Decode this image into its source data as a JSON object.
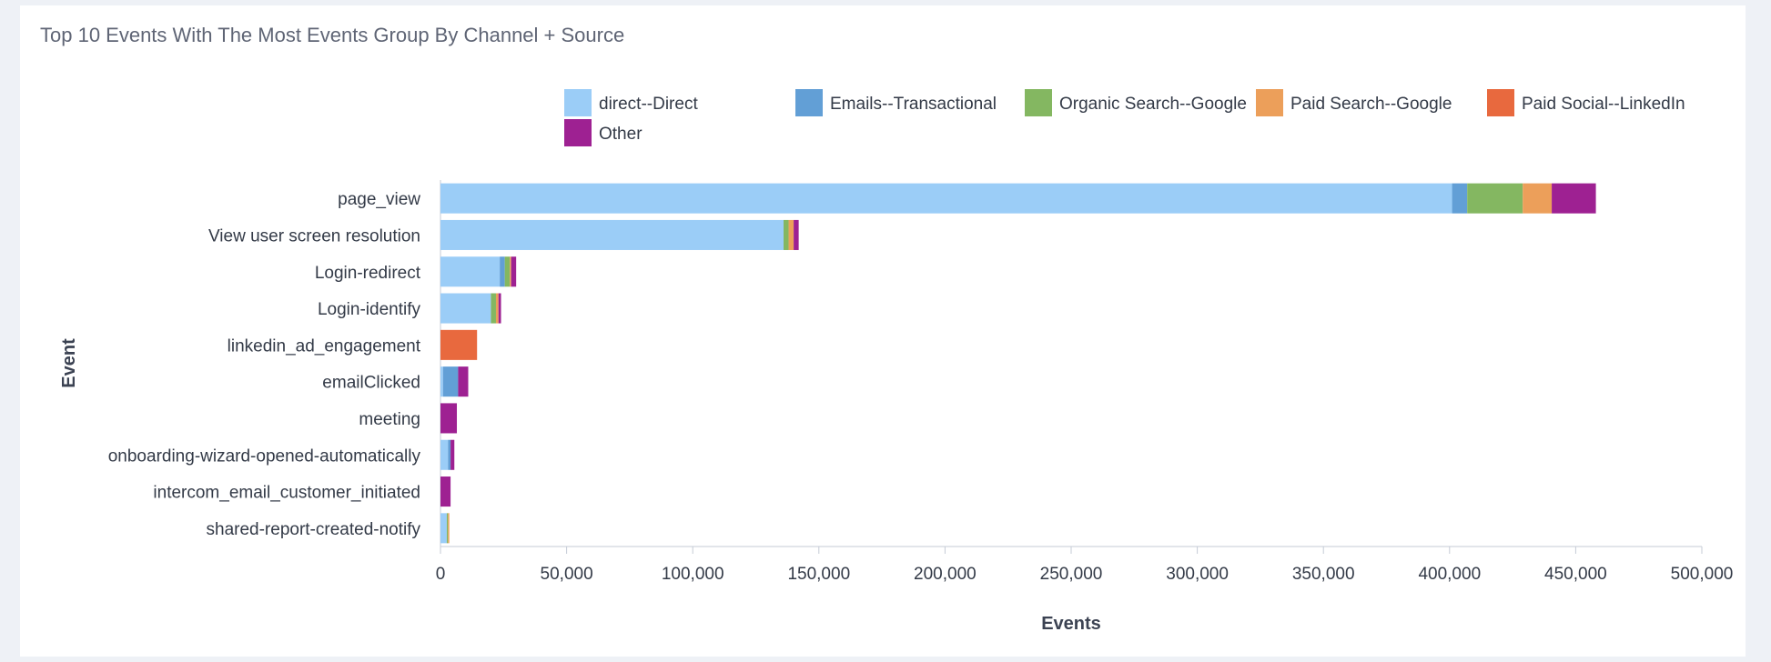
{
  "card": {
    "title": "Top 10 Events With The Most Events Group By Channel + Source"
  },
  "chart_data": {
    "type": "bar",
    "orientation": "horizontal",
    "stacked": true,
    "title": "Top 10 Events With The Most Events Group By Channel + Source",
    "xlabel": "Events",
    "ylabel": "Event",
    "xlim": [
      0,
      500000
    ],
    "xticks": [
      0,
      50000,
      100000,
      150000,
      200000,
      250000,
      300000,
      350000,
      400000,
      450000,
      500000
    ],
    "xtick_labels": [
      "0",
      "50,000",
      "100,000",
      "150,000",
      "200,000",
      "250,000",
      "300,000",
      "350,000",
      "400,000",
      "450,000",
      "500,000"
    ],
    "grid": false,
    "legend_position": "top",
    "categories": [
      "page_view",
      "View user screen resolution",
      "Login-redirect",
      "Login-identify",
      "linkedin_ad_engagement",
      "emailClicked",
      "meeting",
      "onboarding-wizard-opened-automatically",
      "intercom_email_customer_initiated",
      "shared-report-created-notify"
    ],
    "series": [
      {
        "name": "direct--Direct",
        "color": "#9bcdf7",
        "values": [
          401000,
          136000,
          23500,
          20000,
          0,
          1000,
          0,
          3000,
          0,
          2500
        ]
      },
      {
        "name": "Emails--Transactional",
        "color": "#629fd6",
        "values": [
          6000,
          0,
          2000,
          0,
          0,
          6000,
          0,
          1000,
          0,
          0
        ]
      },
      {
        "name": "Organic Search--Google",
        "color": "#84b761",
        "values": [
          22000,
          2000,
          2000,
          2000,
          0,
          0,
          0,
          0,
          0,
          500
        ]
      },
      {
        "name": "Paid Search--Google",
        "color": "#ec9f5a",
        "values": [
          11500,
          2000,
          500,
          1000,
          0,
          0,
          0,
          0,
          0,
          500
        ]
      },
      {
        "name": "Paid Social--LinkedIn",
        "color": "#e8693e",
        "values": [
          0,
          0,
          0,
          0,
          14500,
          0,
          0,
          0,
          0,
          0
        ]
      },
      {
        "name": "Other",
        "color": "#9e2192",
        "values": [
          17500,
          2000,
          2000,
          1000,
          0,
          4000,
          6500,
          1500,
          4000,
          0
        ]
      }
    ]
  }
}
